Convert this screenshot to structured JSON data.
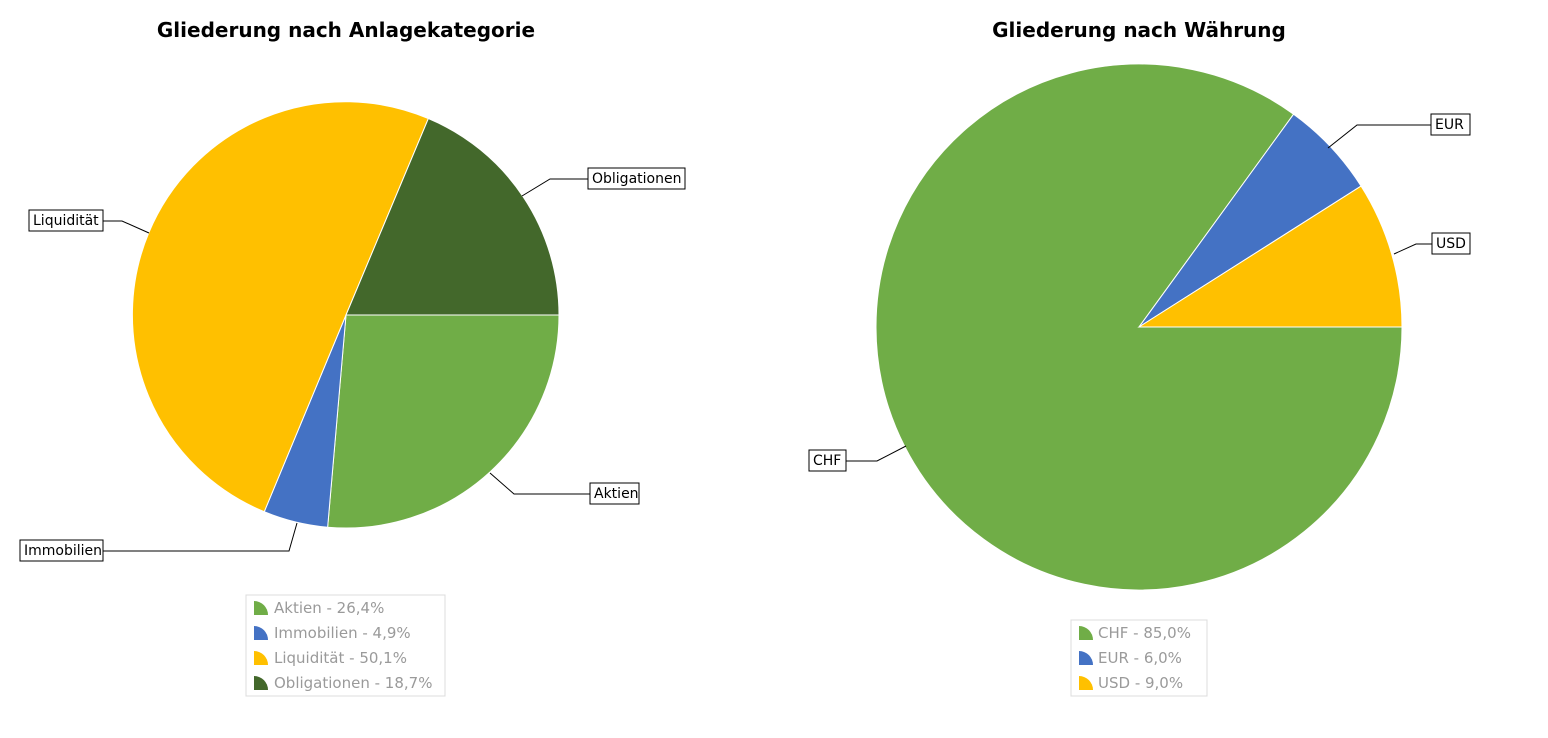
{
  "chart_data": [
    {
      "type": "pie",
      "title": "Gliederung nach Anlagekategorie",
      "slices": [
        {
          "label": "Aktien",
          "value": 26.4,
          "legend": "Aktien - 26,4%",
          "color": "#70ad47"
        },
        {
          "label": "Immobilien",
          "value": 4.9,
          "legend": "Immobilien - 4,9%",
          "color": "#4472c4"
        },
        {
          "label": "Liquidität",
          "value": 50.1,
          "legend": "Liquidität - 50,1%",
          "color": "#ffc000"
        },
        {
          "label": "Obligationen",
          "value": 18.7,
          "legend": "Obligationen - 18,7%",
          "color": "#43682b"
        }
      ],
      "start": "3 o'clock, clockwise",
      "legend_position": "bottom"
    },
    {
      "type": "pie",
      "title": "Gliederung nach Währung",
      "slices": [
        {
          "label": "CHF",
          "value": 85.0,
          "legend": "CHF - 85,0%",
          "color": "#70ad47"
        },
        {
          "label": "EUR",
          "value": 6.0,
          "legend": "EUR - 6,0%",
          "color": "#4472c4"
        },
        {
          "label": "USD",
          "value": 9.0,
          "legend": "USD - 9,0%",
          "color": "#ffc000"
        }
      ],
      "start": "3 o'clock, clockwise",
      "legend_position": "bottom"
    }
  ]
}
